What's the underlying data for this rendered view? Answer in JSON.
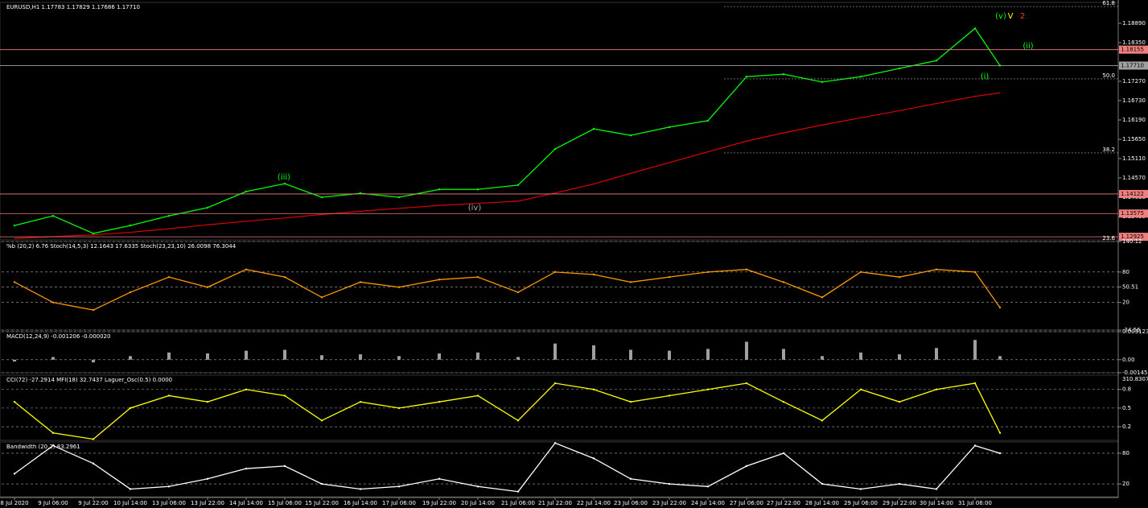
{
  "chart_data": [
    {
      "type": "line",
      "title": "EURUSD,H1 1.17783 1.17829 1.17686 1.17710",
      "categories": [
        "8 Jul 2020",
        "9 Jul 06:00",
        "9 Jul 22:00",
        "10 Jul 14:00",
        "13 Jul 06:00",
        "13 Jul 22:00",
        "14 Jul 14:00",
        "15 Jul 06:00",
        "15 Jul 22:00",
        "16 Jul 14:00",
        "17 Jul 06:00",
        "19 Jul 22:00",
        "20 Jul 14:00",
        "21 Jul 06:00",
        "21 Jul 22:00",
        "22 Jul 14:00",
        "23 Jul 06:00",
        "23 Jul 22:00",
        "24 Jul 14:00",
        "27 Jul 06:00",
        "27 Jul 22:00",
        "28 Jul 14:00",
        "29 Jul 06:00",
        "29 Jul 22:00",
        "30 Jul 14:00",
        "31 Jul 06:00",
        null
      ],
      "values": [
        1.1324,
        1.1351,
        1.1302,
        1.1324,
        1.1351,
        1.1374,
        1.1419,
        1.1441,
        1.1403,
        1.1414,
        1.1403,
        1.1425,
        1.1425,
        1.1437,
        1.1538,
        1.1594,
        1.1576,
        1.1599,
        1.1617,
        1.174,
        1.1747,
        1.1725,
        1.174,
        1.1763,
        1.1785,
        1.1875,
        1.1771
      ],
      "color": "#00ff00",
      "overlay": {
        "color": "#e00000",
        "values": [
          1.1288,
          1.1293,
          1.1298,
          1.1305,
          1.1315,
          1.1326,
          1.1336,
          1.1345,
          1.1355,
          1.1364,
          1.1372,
          1.138,
          1.1386,
          1.1392,
          1.1415,
          1.144,
          1.147,
          1.15,
          1.153,
          1.156,
          1.1583,
          1.1605,
          1.1625,
          1.1645,
          1.1665,
          1.1685,
          1.1695
        ]
      },
      "ylim": [
        1.12838,
        1.19475
      ],
      "yticks": [
        {
          "value": 1.1889,
          "label": "1.18890"
        },
        {
          "value": 1.1835,
          "label": "1.18350"
        },
        {
          "value": 1.1727,
          "label": "1.17270"
        },
        {
          "value": 1.1673,
          "label": "1.16730"
        },
        {
          "value": 1.1619,
          "label": "1.16190"
        },
        {
          "value": 1.1565,
          "label": "1.15650"
        },
        {
          "value": 1.1511,
          "label": "1.15110"
        },
        {
          "value": 1.1457,
          "label": "1.14570"
        },
        {
          "value": 1.1403,
          "label": "1.14030"
        },
        {
          "value": 1.1349,
          "label": "1.13490"
        }
      ],
      "levels": [
        {
          "value": 1.18155,
          "color": "#f08080"
        },
        {
          "value": 1.1771,
          "label": "1.17710",
          "color": "#a0a0a0"
        },
        {
          "value": 1.14122,
          "color": "#f08080"
        },
        {
          "value": 1.13575,
          "color": "#f08080"
        },
        {
          "value": 1.12925,
          "color": "#f08080"
        }
      ],
      "fib_levels": [
        {
          "value": 1.1936,
          "label": "61.8"
        },
        {
          "value": 1.1734,
          "label": "50.0"
        },
        {
          "value": 1.1527,
          "label": "38.2"
        },
        {
          "value": 1.1279,
          "label": "23.6"
        }
      ],
      "annotations": [
        "(iii)",
        "(iv)",
        "(v)",
        "V",
        "2",
        "(i)",
        "(ii)"
      ]
    },
    {
      "type": "line",
      "title": "%b (20,2) 6.76 Stoch(14,5,3) 12.1643 17.6335 Stoch(23,23,10) 26.0098 76.3044",
      "values": [
        60,
        20,
        5,
        40,
        70,
        50,
        85,
        70,
        30,
        60,
        50,
        65,
        70,
        40,
        80,
        75,
        60,
        70,
        80,
        85,
        60,
        30,
        80,
        70,
        85,
        80,
        10
      ],
      "color": "#ff9900",
      "ylim": [
        -34.56,
        140.12
      ],
      "yticks": [
        140.12,
        80,
        50.51,
        20,
        -34.56
      ]
    },
    {
      "type": "bar",
      "title": "MACD(12,24,9) -0.001206 -0.000020",
      "values": [
        -0.0002,
        0.0003,
        -0.0003,
        0.0004,
        0.0008,
        0.0007,
        0.001,
        0.0011,
        0.0005,
        0.0006,
        0.0004,
        0.0007,
        0.0008,
        0.0003,
        0.0018,
        0.0016,
        0.0011,
        0.001,
        0.0012,
        0.002,
        0.0012,
        0.0004,
        0.0008,
        0.0006,
        0.0013,
        0.0022,
        0.0004
      ],
      "color": "#a0a0a0",
      "ylim": [
        -0.001457,
        0.003123
      ],
      "yticks": [
        0.003123,
        {
          "value": 0,
          "label": "0.00"
        },
        -0.001457
      ]
    },
    {
      "type": "line",
      "title": "CCI(72) -27.2914 MFI(18) 32.7437 Laguer_Osc(0.5) 0.0000",
      "values": [
        0.6,
        0.1,
        0.0,
        0.5,
        0.7,
        0.6,
        0.8,
        0.7,
        0.3,
        0.6,
        0.5,
        0.6,
        0.7,
        0.3,
        0.9,
        0.8,
        0.6,
        0.7,
        0.8,
        0.9,
        0.6,
        0.3,
        0.8,
        0.6,
        0.8,
        0.9,
        0.1
      ],
      "color": "#ffff00",
      "ylim": [
        -0.02,
        1.03
      ],
      "yticks": [
        0.8,
        0.5,
        0.2
      ],
      "scale_max_label": "310.8307"
    },
    {
      "type": "line",
      "title": "Bandwidth (20,2) 83.2961",
      "values": [
        40,
        95,
        60,
        10,
        15,
        30,
        50,
        55,
        20,
        10,
        15,
        30,
        15,
        5,
        100,
        70,
        30,
        20,
        15,
        55,
        80,
        20,
        10,
        20,
        10,
        95,
        80
      ],
      "color": "#ffffff",
      "ylim": [
        -5,
        102
      ],
      "yticks": [
        80,
        20
      ]
    }
  ]
}
